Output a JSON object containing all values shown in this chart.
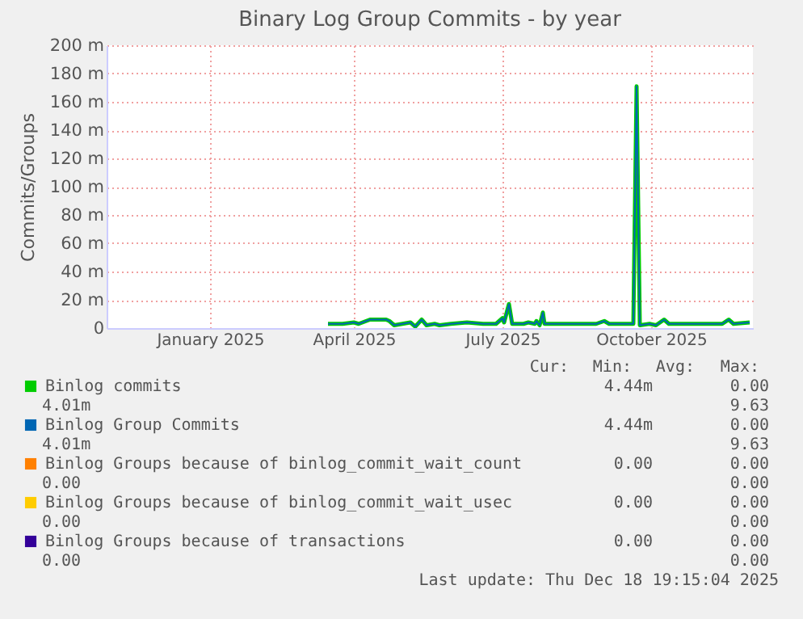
{
  "chart_data": {
    "type": "line",
    "title": "Binary Log Group Commits - by year",
    "ylabel": "Commits/Groups",
    "x": [
      "2025-03-30",
      "2025-04-08",
      "2025-04-15",
      "2025-04-18",
      "2025-04-25",
      "2025-05-05",
      "2025-05-07",
      "2025-05-10",
      "2025-05-15",
      "2025-05-20",
      "2025-05-23",
      "2025-05-27",
      "2025-05-30",
      "2025-06-04",
      "2025-06-07",
      "2025-06-14",
      "2025-06-24",
      "2025-07-04",
      "2025-07-12",
      "2025-07-16",
      "2025-07-17",
      "2025-07-20",
      "2025-07-22",
      "2025-07-29",
      "2025-08-01",
      "2025-08-05",
      "2025-08-06",
      "2025-08-08",
      "2025-08-10",
      "2025-08-11",
      "2025-08-23",
      "2025-09-02",
      "2025-09-12",
      "2025-09-17",
      "2025-09-20",
      "2025-10-05",
      "2025-10-07",
      "2025-10-09",
      "2025-10-15",
      "2025-10-19",
      "2025-10-24",
      "2025-10-27",
      "2025-11-08",
      "2025-11-14",
      "2025-11-21",
      "2025-11-29",
      "2025-12-03",
      "2025-12-06",
      "2025-12-16"
    ],
    "series": [
      {
        "name": "Binlog commits",
        "color": "#00cc00",
        "values": [
          3,
          3,
          4,
          3,
          6,
          6,
          5,
          2,
          3,
          4,
          1,
          6,
          2,
          3,
          2,
          3,
          4,
          3,
          3,
          7,
          4,
          17,
          3,
          3,
          4,
          3,
          5,
          2,
          11,
          3,
          3,
          3,
          3,
          5,
          3,
          3,
          171,
          2,
          3,
          2,
          6,
          3,
          3,
          3,
          3,
          3,
          6,
          3,
          4
        ]
      },
      {
        "name": "Binlog Group Commits",
        "color": "#0066b3",
        "values": [
          3,
          3,
          4,
          3,
          6,
          6,
          5,
          2,
          3,
          4,
          1,
          6,
          2,
          3,
          2,
          3,
          4,
          3,
          3,
          7,
          4,
          17,
          3,
          3,
          4,
          3,
          5,
          2,
          11,
          3,
          3,
          3,
          3,
          5,
          3,
          3,
          171,
          2,
          3,
          2,
          6,
          3,
          3,
          3,
          3,
          3,
          6,
          3,
          4
        ]
      },
      {
        "name": "Binlog Groups because of binlog_commit_wait_count",
        "color": "#ff8000",
        "values": [
          null,
          null,
          null,
          null,
          null,
          null,
          null,
          null,
          null,
          null,
          null,
          null,
          null,
          null,
          null,
          null,
          null,
          null,
          null,
          null,
          null,
          null,
          null,
          null,
          null,
          null,
          null,
          null,
          null,
          null,
          null,
          null,
          null,
          null,
          null,
          null,
          null,
          null,
          null,
          null,
          null,
          null,
          null,
          null,
          null,
          null,
          null,
          null,
          null
        ]
      },
      {
        "name": "Binlog Groups because of binlog_commit_wait_usec",
        "color": "#ffcc00",
        "values": [
          null,
          null,
          null,
          null,
          null,
          null,
          null,
          null,
          null,
          null,
          null,
          null,
          null,
          null,
          null,
          null,
          null,
          null,
          null,
          null,
          null,
          null,
          null,
          null,
          null,
          null,
          null,
          null,
          null,
          null,
          null,
          null,
          null,
          null,
          null,
          null,
          null,
          null,
          null,
          null,
          null,
          null,
          null,
          null,
          null,
          null,
          null,
          null,
          null
        ]
      },
      {
        "name": "Binlog Groups because of transactions",
        "color": "#330099",
        "values": [
          null,
          null,
          null,
          null,
          null,
          null,
          null,
          null,
          null,
          null,
          null,
          null,
          null,
          null,
          null,
          null,
          null,
          null,
          null,
          null,
          null,
          null,
          null,
          null,
          null,
          null,
          null,
          null,
          null,
          null,
          null,
          null,
          null,
          null,
          null,
          null,
          null,
          null,
          null,
          null,
          null,
          null,
          null,
          null,
          null,
          null,
          null,
          null,
          null
        ]
      }
    ],
    "xlim": [
      "2024-11-13",
      "2025-12-18"
    ],
    "xticks": [
      {
        "value": "2025-01-16",
        "label": "January 2025"
      },
      {
        "value": "2025-04-15",
        "label": "April 2025"
      },
      {
        "value": "2025-07-16",
        "label": "July 2025"
      },
      {
        "value": "2025-10-16",
        "label": "October 2025"
      }
    ],
    "ylim": [
      0,
      200
    ],
    "yticks": [
      {
        "value": 0,
        "label": "0"
      },
      {
        "value": 20,
        "label": "20 m"
      },
      {
        "value": 40,
        "label": "40 m"
      },
      {
        "value": 60,
        "label": "60 m"
      },
      {
        "value": 80,
        "label": "80 m"
      },
      {
        "value": 100,
        "label": "100 m"
      },
      {
        "value": 120,
        "label": "120 m"
      },
      {
        "value": 140,
        "label": "140 m"
      },
      {
        "value": 160,
        "label": "160 m"
      },
      {
        "value": 180,
        "label": "180 m"
      },
      {
        "value": 200,
        "label": "200 m"
      }
    ],
    "grid": true,
    "legend": "bottom",
    "line_style": "solid",
    "annotations": [
      "Cur:",
      "Min:",
      "Avg:",
      "Max:",
      "4.44m",
      "0.00",
      "4.01m",
      "9.63",
      "4.44m",
      "0.00",
      "4.01m",
      "9.63",
      "0.00",
      "0.00",
      "0.00",
      "0.00",
      "0.00",
      "0.00",
      "0.00",
      "0.00",
      "0.00",
      "0.00",
      "0.00",
      "0.00",
      "Last update: Thu Dec 18 19:15:04 2025"
    ]
  }
}
